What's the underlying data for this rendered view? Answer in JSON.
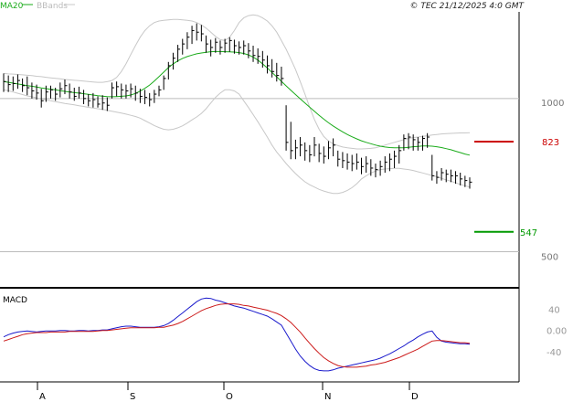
{
  "header": {
    "legend_ma": "MA20",
    "legend_bb": "BBands",
    "copyright": "© TEC 21/12/2025 4:0 GMT"
  },
  "colors": {
    "price": "#000000",
    "ma": "#1aab1a",
    "bbands": "#c8c8c8",
    "gridline": "#bbbbbb",
    "resistance": "#cc0000",
    "support": "#009900",
    "macd_line": "#1a1acc",
    "signal_line": "#cc1a1a"
  },
  "chart_data": [
    {
      "type": "line",
      "panel": "price",
      "scale": "log",
      "ylim": [
        430,
        1480
      ],
      "y_ticks": [
        {
          "value": 1000,
          "label": "1000"
        },
        {
          "value": 500,
          "label": "500"
        }
      ],
      "x_ticks": [
        "A",
        "S",
        "O",
        "N",
        "D"
      ],
      "levels": [
        {
          "name": "resistance",
          "value": 823,
          "label": "823"
        },
        {
          "name": "support",
          "value": 547,
          "label": "547"
        }
      ],
      "bars": [
        {
          "high": 1120,
          "low": 1030,
          "close": 1080
        },
        {
          "high": 1110,
          "low": 1030,
          "close": 1065
        },
        {
          "high": 1105,
          "low": 1035,
          "close": 1070
        },
        {
          "high": 1115,
          "low": 1045,
          "close": 1085
        },
        {
          "high": 1095,
          "low": 1030,
          "close": 1060
        },
        {
          "high": 1105,
          "low": 1015,
          "close": 1050
        },
        {
          "high": 1075,
          "low": 1000,
          "close": 1035
        },
        {
          "high": 1065,
          "low": 995,
          "close": 1025
        },
        {
          "high": 1045,
          "low": 960,
          "close": 990
        },
        {
          "high": 1060,
          "low": 985,
          "close": 1030
        },
        {
          "high": 1060,
          "low": 1000,
          "close": 1040
        },
        {
          "high": 1050,
          "low": 990,
          "close": 1020
        },
        {
          "high": 1075,
          "low": 1005,
          "close": 1045
        },
        {
          "high": 1090,
          "low": 1020,
          "close": 1060
        },
        {
          "high": 1070,
          "low": 1000,
          "close": 1030
        },
        {
          "high": 1050,
          "low": 990,
          "close": 1010
        },
        {
          "high": 1055,
          "low": 1000,
          "close": 1025
        },
        {
          "high": 1040,
          "low": 975,
          "close": 1000
        },
        {
          "high": 1020,
          "low": 965,
          "close": 990
        },
        {
          "high": 1025,
          "low": 960,
          "close": 995
        },
        {
          "high": 1010,
          "low": 960,
          "close": 975
        },
        {
          "high": 1015,
          "low": 950,
          "close": 980
        },
        {
          "high": 1005,
          "low": 945,
          "close": 970
        },
        {
          "high": 1075,
          "low": 1000,
          "close": 1050
        },
        {
          "high": 1080,
          "low": 1010,
          "close": 1055
        },
        {
          "high": 1070,
          "low": 1000,
          "close": 1040
        },
        {
          "high": 1065,
          "low": 1000,
          "close": 1035
        },
        {
          "high": 1070,
          "low": 1005,
          "close": 1045
        },
        {
          "high": 1060,
          "low": 990,
          "close": 1025
        },
        {
          "high": 1045,
          "low": 980,
          "close": 1010
        },
        {
          "high": 1040,
          "low": 975,
          "close": 1005
        },
        {
          "high": 1025,
          "low": 965,
          "close": 995
        },
        {
          "high": 1040,
          "low": 980,
          "close": 1020
        },
        {
          "high": 1060,
          "low": 1010,
          "close": 1040
        },
        {
          "high": 1110,
          "low": 1040,
          "close": 1095
        },
        {
          "high": 1180,
          "low": 1090,
          "close": 1160
        },
        {
          "high": 1230,
          "low": 1140,
          "close": 1200
        },
        {
          "high": 1275,
          "low": 1180,
          "close": 1250
        },
        {
          "high": 1310,
          "low": 1220,
          "close": 1280
        },
        {
          "high": 1350,
          "low": 1250,
          "close": 1320
        },
        {
          "high": 1390,
          "low": 1280,
          "close": 1360
        },
        {
          "high": 1405,
          "low": 1300,
          "close": 1350
        },
        {
          "high": 1395,
          "low": 1295,
          "close": 1340
        },
        {
          "high": 1330,
          "low": 1230,
          "close": 1280
        },
        {
          "high": 1305,
          "low": 1210,
          "close": 1260
        },
        {
          "high": 1315,
          "low": 1230,
          "close": 1290
        },
        {
          "high": 1300,
          "low": 1220,
          "close": 1260
        },
        {
          "high": 1310,
          "low": 1230,
          "close": 1285
        },
        {
          "high": 1320,
          "low": 1235,
          "close": 1300
        },
        {
          "high": 1305,
          "low": 1225,
          "close": 1270
        },
        {
          "high": 1295,
          "low": 1220,
          "close": 1260
        },
        {
          "high": 1300,
          "low": 1220,
          "close": 1270
        },
        {
          "high": 1285,
          "low": 1200,
          "close": 1240
        },
        {
          "high": 1270,
          "low": 1180,
          "close": 1215
        },
        {
          "high": 1255,
          "low": 1170,
          "close": 1210
        },
        {
          "high": 1240,
          "low": 1150,
          "close": 1190
        },
        {
          "high": 1215,
          "low": 1120,
          "close": 1160
        },
        {
          "high": 1195,
          "low": 1100,
          "close": 1130
        },
        {
          "high": 1175,
          "low": 1080,
          "close": 1110
        },
        {
          "high": 1155,
          "low": 1060,
          "close": 1095
        },
        {
          "high": 970,
          "low": 790,
          "close": 820
        },
        {
          "high": 900,
          "low": 760,
          "close": 790
        },
        {
          "high": 830,
          "low": 760,
          "close": 800
        },
        {
          "high": 840,
          "low": 770,
          "close": 810
        },
        {
          "high": 820,
          "low": 755,
          "close": 790
        },
        {
          "high": 810,
          "low": 750,
          "close": 775
        },
        {
          "high": 840,
          "low": 770,
          "close": 810
        },
        {
          "high": 815,
          "low": 750,
          "close": 780
        },
        {
          "high": 805,
          "low": 745,
          "close": 770
        },
        {
          "high": 825,
          "low": 760,
          "close": 800
        },
        {
          "high": 835,
          "low": 770,
          "close": 810
        },
        {
          "high": 790,
          "low": 735,
          "close": 760
        },
        {
          "high": 785,
          "low": 730,
          "close": 755
        },
        {
          "high": 780,
          "low": 725,
          "close": 750
        },
        {
          "high": 775,
          "low": 720,
          "close": 745
        },
        {
          "high": 780,
          "low": 725,
          "close": 750
        },
        {
          "high": 765,
          "low": 710,
          "close": 735
        },
        {
          "high": 770,
          "low": 715,
          "close": 745
        },
        {
          "high": 760,
          "low": 705,
          "close": 730
        },
        {
          "high": 745,
          "low": 700,
          "close": 725
        },
        {
          "high": 755,
          "low": 705,
          "close": 735
        },
        {
          "high": 770,
          "low": 715,
          "close": 750
        },
        {
          "high": 780,
          "low": 720,
          "close": 760
        },
        {
          "high": 790,
          "low": 730,
          "close": 770
        },
        {
          "high": 810,
          "low": 745,
          "close": 790
        },
        {
          "high": 850,
          "low": 790,
          "close": 835
        },
        {
          "high": 855,
          "low": 795,
          "close": 840
        },
        {
          "high": 850,
          "low": 790,
          "close": 830
        },
        {
          "high": 840,
          "low": 790,
          "close": 820
        },
        {
          "high": 845,
          "low": 790,
          "close": 835
        },
        {
          "high": 855,
          "low": 800,
          "close": 840
        },
        {
          "high": 775,
          "low": 690,
          "close": 705
        },
        {
          "high": 720,
          "low": 680,
          "close": 700
        },
        {
          "high": 730,
          "low": 690,
          "close": 715
        },
        {
          "high": 725,
          "low": 685,
          "close": 710
        },
        {
          "high": 725,
          "low": 685,
          "close": 705
        },
        {
          "high": 720,
          "low": 680,
          "close": 705
        },
        {
          "high": 715,
          "low": 675,
          "close": 695
        },
        {
          "high": 705,
          "low": 670,
          "close": 690
        },
        {
          "high": 700,
          "low": 665,
          "close": 685
        }
      ],
      "ma20": [
        1080,
        1076,
        1072,
        1068,
        1064,
        1060,
        1057,
        1053,
        1049,
        1046,
        1043,
        1040,
        1036,
        1033,
        1030,
        1027,
        1025,
        1022,
        1019,
        1016,
        1013,
        1011,
        1009,
        1008,
        1009,
        1010,
        1012,
        1016,
        1023,
        1034,
        1047,
        1063,
        1082,
        1104,
        1127,
        1150,
        1170,
        1186,
        1199,
        1209,
        1217,
        1224,
        1229,
        1233,
        1236,
        1237,
        1237,
        1236,
        1235,
        1234,
        1231,
        1226,
        1218,
        1206,
        1190,
        1170,
        1148,
        1125,
        1103,
        1081,
        1059,
        1038,
        1018,
        999,
        980,
        962,
        944,
        927,
        911,
        896,
        883,
        871,
        860,
        850,
        841,
        833,
        826,
        820,
        815,
        810,
        806,
        803,
        801,
        800,
        800,
        800,
        802,
        804,
        805,
        807,
        807,
        806,
        804,
        801,
        797,
        793,
        788,
        783,
        778,
        774
      ],
      "bb_upper": [
        1120,
        1118,
        1117,
        1115,
        1113,
        1111,
        1109,
        1106,
        1104,
        1101,
        1098,
        1096,
        1093,
        1090,
        1088,
        1086,
        1084,
        1082,
        1080,
        1078,
        1076,
        1076,
        1079,
        1085,
        1100,
        1130,
        1170,
        1220,
        1270,
        1320,
        1360,
        1390,
        1410,
        1420,
        1425,
        1428,
        1430,
        1430,
        1428,
        1425,
        1420,
        1410,
        1395,
        1375,
        1350,
        1325,
        1305,
        1300,
        1320,
        1360,
        1410,
        1440,
        1455,
        1460,
        1455,
        1440,
        1420,
        1390,
        1350,
        1300,
        1250,
        1195,
        1140,
        1080,
        1020,
        962,
        910,
        870,
        842,
        825,
        815,
        808,
        803,
        800,
        798,
        796,
        796,
        797,
        798,
        800,
        805,
        810,
        815,
        820,
        825,
        830,
        835,
        838,
        840,
        843,
        845,
        848,
        850,
        852,
        853,
        854,
        855,
        856,
        856,
        857
      ],
      "bb_lower": [
        1040,
        1036,
        1030,
        1024,
        1018,
        1012,
        1008,
        1003,
        998,
        994,
        990,
        986,
        982,
        978,
        975,
        972,
        968,
        965,
        961,
        958,
        955,
        952,
        948,
        944,
        940,
        936,
        932,
        927,
        922,
        915,
        905,
        895,
        885,
        877,
        870,
        868,
        870,
        876,
        884,
        895,
        908,
        920,
        935,
        955,
        980,
        1005,
        1025,
        1040,
        1040,
        1035,
        1020,
        990,
        960,
        930,
        900,
        870,
        840,
        810,
        785,
        765,
        745,
        728,
        712,
        698,
        686,
        677,
        670,
        663,
        658,
        654,
        651,
        651,
        654,
        660,
        668,
        680,
        695,
        705,
        714,
        720,
        725,
        727,
        728,
        729,
        729,
        727,
        725,
        722,
        718,
        714,
        710,
        706,
        702,
        697,
        692,
        688,
        683,
        678,
        674,
        670
      ]
    },
    {
      "type": "line",
      "panel": "macd",
      "title": "MACD",
      "ylim": [
        -95,
        75
      ],
      "y_ticks": [
        {
          "value": 40,
          "label": "40"
        },
        {
          "value": 0,
          "label": "0.00"
        },
        {
          "value": -40,
          "label": "-40"
        }
      ],
      "series": [
        {
          "name": "MACD",
          "values": [
            -12,
            -8,
            -5,
            -3,
            -2,
            -1,
            -2,
            -3,
            -2,
            -1,
            -1,
            -1,
            0,
            0,
            -1,
            -1,
            0,
            0,
            -1,
            0,
            0,
            1,
            1,
            3,
            5,
            7,
            8,
            8,
            7,
            6,
            6,
            6,
            6,
            7,
            9,
            13,
            19,
            26,
            33,
            40,
            47,
            54,
            59,
            61,
            60,
            57,
            55,
            52,
            49,
            46,
            44,
            42,
            39,
            36,
            33,
            30,
            27,
            22,
            16,
            10,
            -5,
            -20,
            -35,
            -48,
            -58,
            -66,
            -72,
            -75,
            -76,
            -76,
            -74,
            -71,
            -69,
            -67,
            -65,
            -63,
            -61,
            -59,
            -57,
            -55,
            -52,
            -48,
            -44,
            -39,
            -34,
            -29,
            -23,
            -18,
            -12,
            -7,
            -3,
            -1,
            -13,
            -20,
            -22,
            -23,
            -24,
            -25,
            -25,
            -26
          ]
        },
        {
          "name": "Signal",
          "values": [
            -20,
            -17,
            -14,
            -11,
            -8,
            -6,
            -5,
            -4,
            -4,
            -4,
            -3,
            -3,
            -3,
            -3,
            -2,
            -2,
            -2,
            -2,
            -2,
            -2,
            -1,
            0,
            0,
            1,
            2,
            3,
            4,
            5,
            5,
            5,
            5,
            5,
            5,
            6,
            6,
            8,
            10,
            13,
            17,
            22,
            27,
            32,
            37,
            41,
            44,
            47,
            49,
            50,
            50,
            50,
            49,
            47,
            46,
            44,
            42,
            40,
            38,
            35,
            32,
            28,
            22,
            15,
            6,
            -3,
            -14,
            -24,
            -34,
            -43,
            -51,
            -57,
            -62,
            -66,
            -68,
            -69,
            -69,
            -69,
            -68,
            -67,
            -65,
            -64,
            -62,
            -60,
            -57,
            -54,
            -51,
            -47,
            -43,
            -39,
            -35,
            -30,
            -25,
            -20,
            -19,
            -19,
            -20,
            -21,
            -22,
            -23,
            -23,
            -24
          ]
        }
      ]
    }
  ]
}
